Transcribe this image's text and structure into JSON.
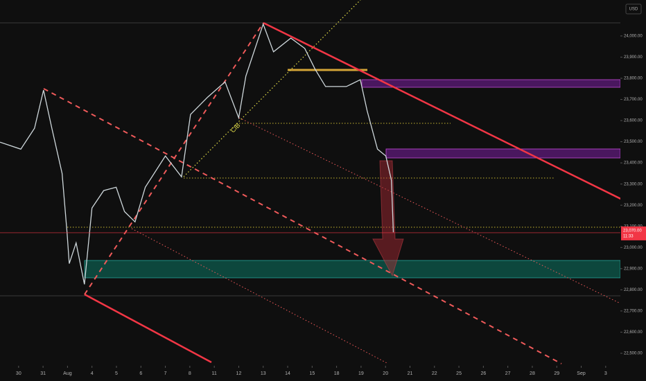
{
  "chart_data": {
    "type": "line",
    "color": "#cfd8dc",
    "currency": "USD",
    "annotation": "CIB",
    "countdown": "11:33",
    "last_price": {
      "value": 23070,
      "label": "23,070.00"
    },
    "x": [
      -0.76,
      0.09,
      0.65,
      1.02,
      1.36,
      1.78,
      1.98,
      2.07,
      2.35,
      2.69,
      3.0,
      3.48,
      3.99,
      4.33,
      4.76,
      5.18,
      6.0,
      6.66,
      7.03,
      7.73,
      8.44,
      9.0,
      9.29,
      10.0,
      10.42,
      11.13,
      11.7,
      12.12,
      12.55,
      13.4,
      13.97,
      14.25,
      14.67,
      15.01,
      15.24,
      15.32
    ],
    "values": [
      23498,
      23465,
      23564,
      23744,
      23564,
      23350,
      23072,
      22924,
      23022,
      22826,
      23187,
      23269,
      23285,
      23170,
      23121,
      23285,
      23433,
      23334,
      23629,
      23711,
      23783,
      23613,
      23810,
      24056,
      23925,
      23990,
      23941,
      23843,
      23761,
      23761,
      23793,
      23646,
      23465,
      23433,
      23318,
      23072
    ],
    "xlim": [
      -0.76,
      24.6
    ],
    "xticks": [
      {
        "value": 0,
        "label": "30"
      },
      {
        "value": 1,
        "label": "31"
      },
      {
        "value": 2,
        "label": "Aug"
      },
      {
        "value": 3,
        "label": "4"
      },
      {
        "value": 4,
        "label": "5"
      },
      {
        "value": 5,
        "label": "6"
      },
      {
        "value": 6,
        "label": "7"
      },
      {
        "value": 7,
        "label": "8"
      },
      {
        "value": 8,
        "label": "11"
      },
      {
        "value": 9,
        "label": "12"
      },
      {
        "value": 10,
        "label": "13"
      },
      {
        "value": 11,
        "label": "14"
      },
      {
        "value": 12,
        "label": "15"
      },
      {
        "value": 13,
        "label": "18"
      },
      {
        "value": 14,
        "label": "19"
      },
      {
        "value": 15,
        "label": "20"
      },
      {
        "value": 16,
        "label": "21"
      },
      {
        "value": 17,
        "label": "22"
      },
      {
        "value": 18,
        "label": "25"
      },
      {
        "value": 19,
        "label": "26"
      },
      {
        "value": 20,
        "label": "27"
      },
      {
        "value": 21,
        "label": "28"
      },
      {
        "value": 22,
        "label": "29"
      },
      {
        "value": 23,
        "label": "Sep"
      },
      {
        "value": 24,
        "label": "3"
      }
    ],
    "ylim": [
      22441,
      24170
    ],
    "yticks": [
      {
        "value": 22500,
        "label": "22,500.00"
      },
      {
        "value": 22600,
        "label": "22,600.00"
      },
      {
        "value": 22700,
        "label": "22,700.00"
      },
      {
        "value": 22800,
        "label": "22,800.00"
      },
      {
        "value": 22900,
        "label": "22,900.00"
      },
      {
        "value": 23000,
        "label": "23,000.00"
      },
      {
        "value": 23100,
        "label": "23,100.00"
      },
      {
        "value": 23200,
        "label": "23,200.00"
      },
      {
        "value": 23300,
        "label": "23,300.00"
      },
      {
        "value": 23400,
        "label": "23,400.00"
      },
      {
        "value": 23500,
        "label": "23,500.00"
      },
      {
        "value": 23600,
        "label": "23,600.00"
      },
      {
        "value": 23700,
        "label": "23,700.00"
      },
      {
        "value": 23800,
        "label": "23,800.00"
      },
      {
        "value": 23900,
        "label": "23,900.00"
      },
      {
        "value": 24000,
        "label": "24,000.00"
      }
    ]
  }
}
